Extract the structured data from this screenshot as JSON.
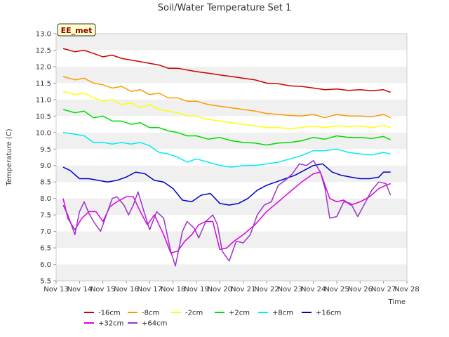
{
  "chart_data": {
    "type": "line",
    "title": "Soil/Water Temperature Set 1",
    "xlabel": "Time",
    "ylabel": "Temperature (C)",
    "badge": "EE_met",
    "ylim": [
      5.5,
      13.0
    ],
    "xlim": [
      13,
      28
    ],
    "yticks": [
      "5.5",
      "6.0",
      "6.5",
      "7.0",
      "7.5",
      "8.0",
      "8.5",
      "9.0",
      "9.5",
      "10.0",
      "10.5",
      "11.0",
      "11.5",
      "12.0",
      "12.5",
      "13.0"
    ],
    "xticks": [
      "Nov 13",
      "Nov 14",
      "Nov 15",
      "Nov 16",
      "Nov 17",
      "Nov 18",
      "Nov 19",
      "Nov 20",
      "Nov 21",
      "Nov 22",
      "Nov 23",
      "Nov 24",
      "Nov 25",
      "Nov 26",
      "Nov 27",
      "Nov 28"
    ],
    "grid": "horizontal bands",
    "legend_position": "bottom",
    "series": [
      {
        "name": "-16cm",
        "color": "#cc0000",
        "x": [
          13.3,
          13.8,
          14.2,
          14.6,
          15.0,
          15.4,
          15.8,
          16.2,
          16.6,
          17.0,
          17.4,
          17.8,
          18.2,
          18.6,
          19.0,
          19.5,
          20.0,
          20.5,
          21.0,
          21.5,
          22.0,
          22.5,
          23.0,
          23.5,
          24.0,
          24.5,
          25.0,
          25.5,
          26.0,
          26.5,
          27.0,
          27.3
        ],
        "y": [
          12.55,
          12.45,
          12.5,
          12.4,
          12.3,
          12.35,
          12.25,
          12.2,
          12.15,
          12.1,
          12.05,
          11.95,
          11.95,
          11.9,
          11.85,
          11.8,
          11.75,
          11.7,
          11.65,
          11.6,
          11.5,
          11.48,
          11.42,
          11.4,
          11.35,
          11.3,
          11.32,
          11.28,
          11.3,
          11.27,
          11.3,
          11.22
        ]
      },
      {
        "name": "-8cm",
        "color": "#ff9900",
        "x": [
          13.3,
          13.8,
          14.2,
          14.6,
          15.0,
          15.4,
          15.8,
          16.2,
          16.6,
          17.0,
          17.4,
          17.8,
          18.2,
          18.6,
          19.0,
          19.5,
          20.0,
          20.5,
          21.0,
          21.5,
          22.0,
          22.5,
          23.0,
          23.5,
          24.0,
          24.5,
          25.0,
          25.5,
          26.0,
          26.5,
          27.0,
          27.3
        ],
        "y": [
          11.7,
          11.6,
          11.65,
          11.5,
          11.45,
          11.35,
          11.4,
          11.25,
          11.3,
          11.15,
          11.2,
          11.05,
          11.05,
          10.95,
          10.95,
          10.85,
          10.8,
          10.75,
          10.7,
          10.65,
          10.58,
          10.55,
          10.52,
          10.5,
          10.55,
          10.45,
          10.55,
          10.5,
          10.5,
          10.48,
          10.55,
          10.45
        ]
      },
      {
        "name": "-2cm",
        "color": "#ffff00",
        "x": [
          13.3,
          13.8,
          14.2,
          14.6,
          15.0,
          15.4,
          15.8,
          16.2,
          16.6,
          17.0,
          17.4,
          17.8,
          18.2,
          18.6,
          19.0,
          19.5,
          20.0,
          20.5,
          21.0,
          21.5,
          22.0,
          22.5,
          23.0,
          23.5,
          24.0,
          24.5,
          25.0,
          25.5,
          26.0,
          26.5,
          27.0,
          27.3
        ],
        "y": [
          11.25,
          11.15,
          11.2,
          11.05,
          10.95,
          11.0,
          10.85,
          10.9,
          10.75,
          10.85,
          10.7,
          10.65,
          10.6,
          10.5,
          10.5,
          10.4,
          10.35,
          10.3,
          10.25,
          10.2,
          10.15,
          10.15,
          10.12,
          10.15,
          10.2,
          10.15,
          10.2,
          10.18,
          10.2,
          10.15,
          10.22,
          10.15
        ]
      },
      {
        "name": "+2cm",
        "color": "#00dd00",
        "x": [
          13.3,
          13.8,
          14.2,
          14.6,
          15.0,
          15.4,
          15.8,
          16.2,
          16.6,
          17.0,
          17.4,
          17.8,
          18.2,
          18.6,
          19.0,
          19.5,
          20.0,
          20.5,
          21.0,
          21.5,
          22.0,
          22.5,
          23.0,
          23.5,
          24.0,
          24.5,
          25.0,
          25.5,
          26.0,
          26.5,
          27.0,
          27.3
        ],
        "y": [
          10.7,
          10.6,
          10.65,
          10.45,
          10.5,
          10.35,
          10.35,
          10.25,
          10.3,
          10.15,
          10.15,
          10.05,
          10.0,
          9.9,
          9.9,
          9.8,
          9.85,
          9.75,
          9.7,
          9.68,
          9.62,
          9.68,
          9.7,
          9.75,
          9.85,
          9.8,
          9.9,
          9.85,
          9.85,
          9.82,
          9.88,
          9.78
        ]
      },
      {
        "name": "+8cm",
        "color": "#00eeee",
        "x": [
          13.3,
          13.8,
          14.2,
          14.6,
          15.0,
          15.4,
          15.8,
          16.2,
          16.6,
          17.0,
          17.4,
          17.8,
          18.2,
          18.6,
          19.0,
          19.5,
          20.0,
          20.5,
          21.0,
          21.5,
          22.0,
          22.5,
          23.0,
          23.5,
          24.0,
          24.5,
          25.0,
          25.5,
          26.0,
          26.5,
          27.0,
          27.3
        ],
        "y": [
          10.0,
          9.95,
          9.9,
          9.7,
          9.7,
          9.65,
          9.7,
          9.65,
          9.7,
          9.6,
          9.4,
          9.35,
          9.25,
          9.1,
          9.2,
          9.1,
          9.0,
          8.95,
          9.0,
          9.0,
          9.05,
          9.1,
          9.2,
          9.3,
          9.45,
          9.45,
          9.5,
          9.4,
          9.35,
          9.32,
          9.4,
          9.35
        ]
      },
      {
        "name": "+16cm",
        "color": "#0000cc",
        "x": [
          13.3,
          13.6,
          14.0,
          14.4,
          14.8,
          15.2,
          15.6,
          16.0,
          16.4,
          16.8,
          17.2,
          17.6,
          18.0,
          18.4,
          18.8,
          19.2,
          19.6,
          20.0,
          20.4,
          20.8,
          21.2,
          21.6,
          22.0,
          22.4,
          22.8,
          23.2,
          23.6,
          24.0,
          24.4,
          24.8,
          25.2,
          25.6,
          26.0,
          26.4,
          26.8,
          27.0,
          27.3
        ],
        "y": [
          8.95,
          8.85,
          8.6,
          8.6,
          8.55,
          8.5,
          8.55,
          8.65,
          8.8,
          8.75,
          8.55,
          8.5,
          8.3,
          7.95,
          7.9,
          8.1,
          8.15,
          7.85,
          7.8,
          7.85,
          8.0,
          8.25,
          8.4,
          8.5,
          8.6,
          8.7,
          8.85,
          9.0,
          9.05,
          8.8,
          8.7,
          8.65,
          8.6,
          8.6,
          8.65,
          8.8,
          8.8
        ]
      },
      {
        "name": "+32cm",
        "color": "#dd00dd",
        "x": [
          13.3,
          13.5,
          13.8,
          14.1,
          14.4,
          14.7,
          15.0,
          15.3,
          15.6,
          16.0,
          16.3,
          16.6,
          16.9,
          17.2,
          17.6,
          17.9,
          18.2,
          18.5,
          18.8,
          19.1,
          19.4,
          19.7,
          20.0,
          20.3,
          20.6,
          21.0,
          21.5,
          22.0,
          22.5,
          23.0,
          23.5,
          24.0,
          24.3,
          24.5,
          24.7,
          25.0,
          25.3,
          25.6,
          26.0,
          26.4,
          26.8,
          27.1,
          27.3
        ],
        "y": [
          8.0,
          7.4,
          7.05,
          7.4,
          7.6,
          7.6,
          7.3,
          7.75,
          7.9,
          8.05,
          8.05,
          7.6,
          7.2,
          7.5,
          6.9,
          6.35,
          6.4,
          6.7,
          6.9,
          7.2,
          7.3,
          7.3,
          6.45,
          6.5,
          6.7,
          6.9,
          7.2,
          7.6,
          7.9,
          8.2,
          8.5,
          8.75,
          8.8,
          8.4,
          8.0,
          7.9,
          7.95,
          7.8,
          7.9,
          8.05,
          8.3,
          8.4,
          8.45
        ]
      },
      {
        "name": "+64cm",
        "color": "#9933cc",
        "x": [
          13.3,
          13.5,
          13.8,
          14.0,
          14.2,
          14.4,
          14.6,
          14.9,
          15.1,
          15.4,
          15.6,
          15.9,
          16.1,
          16.3,
          16.5,
          16.8,
          17.0,
          17.3,
          17.6,
          17.9,
          18.1,
          18.4,
          18.6,
          18.9,
          19.1,
          19.4,
          19.7,
          19.9,
          20.1,
          20.4,
          20.7,
          21.0,
          21.3,
          21.6,
          21.9,
          22.2,
          22.5,
          22.8,
          23.1,
          23.4,
          23.7,
          24.0,
          24.3,
          24.5,
          24.7,
          25.0,
          25.3,
          25.6,
          25.9,
          26.2,
          26.5,
          26.8,
          27.1,
          27.3
        ],
        "y": [
          7.8,
          7.5,
          6.9,
          7.6,
          7.9,
          7.55,
          7.3,
          7.0,
          7.4,
          8.0,
          8.05,
          7.8,
          7.5,
          7.8,
          8.2,
          7.5,
          7.05,
          7.6,
          7.4,
          6.4,
          5.95,
          7.0,
          7.3,
          7.1,
          6.8,
          7.3,
          7.5,
          7.2,
          6.4,
          6.1,
          6.7,
          6.65,
          6.9,
          7.5,
          7.8,
          7.9,
          8.4,
          8.55,
          8.75,
          9.05,
          9.0,
          9.15,
          8.8,
          8.3,
          7.4,
          7.45,
          7.9,
          7.85,
          7.45,
          7.85,
          8.25,
          8.5,
          8.45,
          8.1
        ]
      }
    ]
  }
}
